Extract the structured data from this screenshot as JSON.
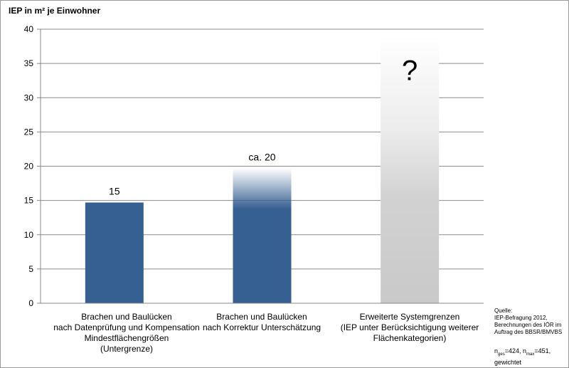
{
  "chart_data": {
    "type": "bar",
    "ylabel": "IEP in m² je Einwohner",
    "ylim": [
      0,
      40
    ],
    "yticks": [
      0,
      5,
      10,
      15,
      20,
      25,
      30,
      35,
      40
    ],
    "grid": true,
    "categories": [
      [
        "Brachen und Baulücken",
        "nach Datenprüfung und Kompensation",
        "Mindestflächengrößen",
        "(Untergrenze)"
      ],
      [
        "Brachen und Baulücken",
        "nach Korrektur Unterschätzung"
      ],
      [
        "Erweiterte Systemgrenzen",
        "(IEP unter Berücksichtigung weiterer",
        "Flächenkategorien)"
      ]
    ],
    "values": [
      14.7,
      19.7,
      39.0
    ],
    "data_labels": [
      "15",
      "ca. 20",
      "?"
    ],
    "bar_styles": [
      "solid",
      "fade-top",
      "gray-gradient"
    ],
    "bar_color": "#376092",
    "gray_color": "#c8c8c8"
  },
  "source": {
    "lines": [
      "Quelle:",
      "IEP-Befragung 2012,",
      "Berechnungen des IÖR im",
      "Auftrag des BBSR/BMVBS"
    ]
  },
  "sample": {
    "n_ges_prefix": "n",
    "n_ges_sub": "ges",
    "n_ges_value": "=424, n",
    "n_max_sub": "max",
    "n_max_value": "=451,",
    "weighted": "gewichtet"
  }
}
